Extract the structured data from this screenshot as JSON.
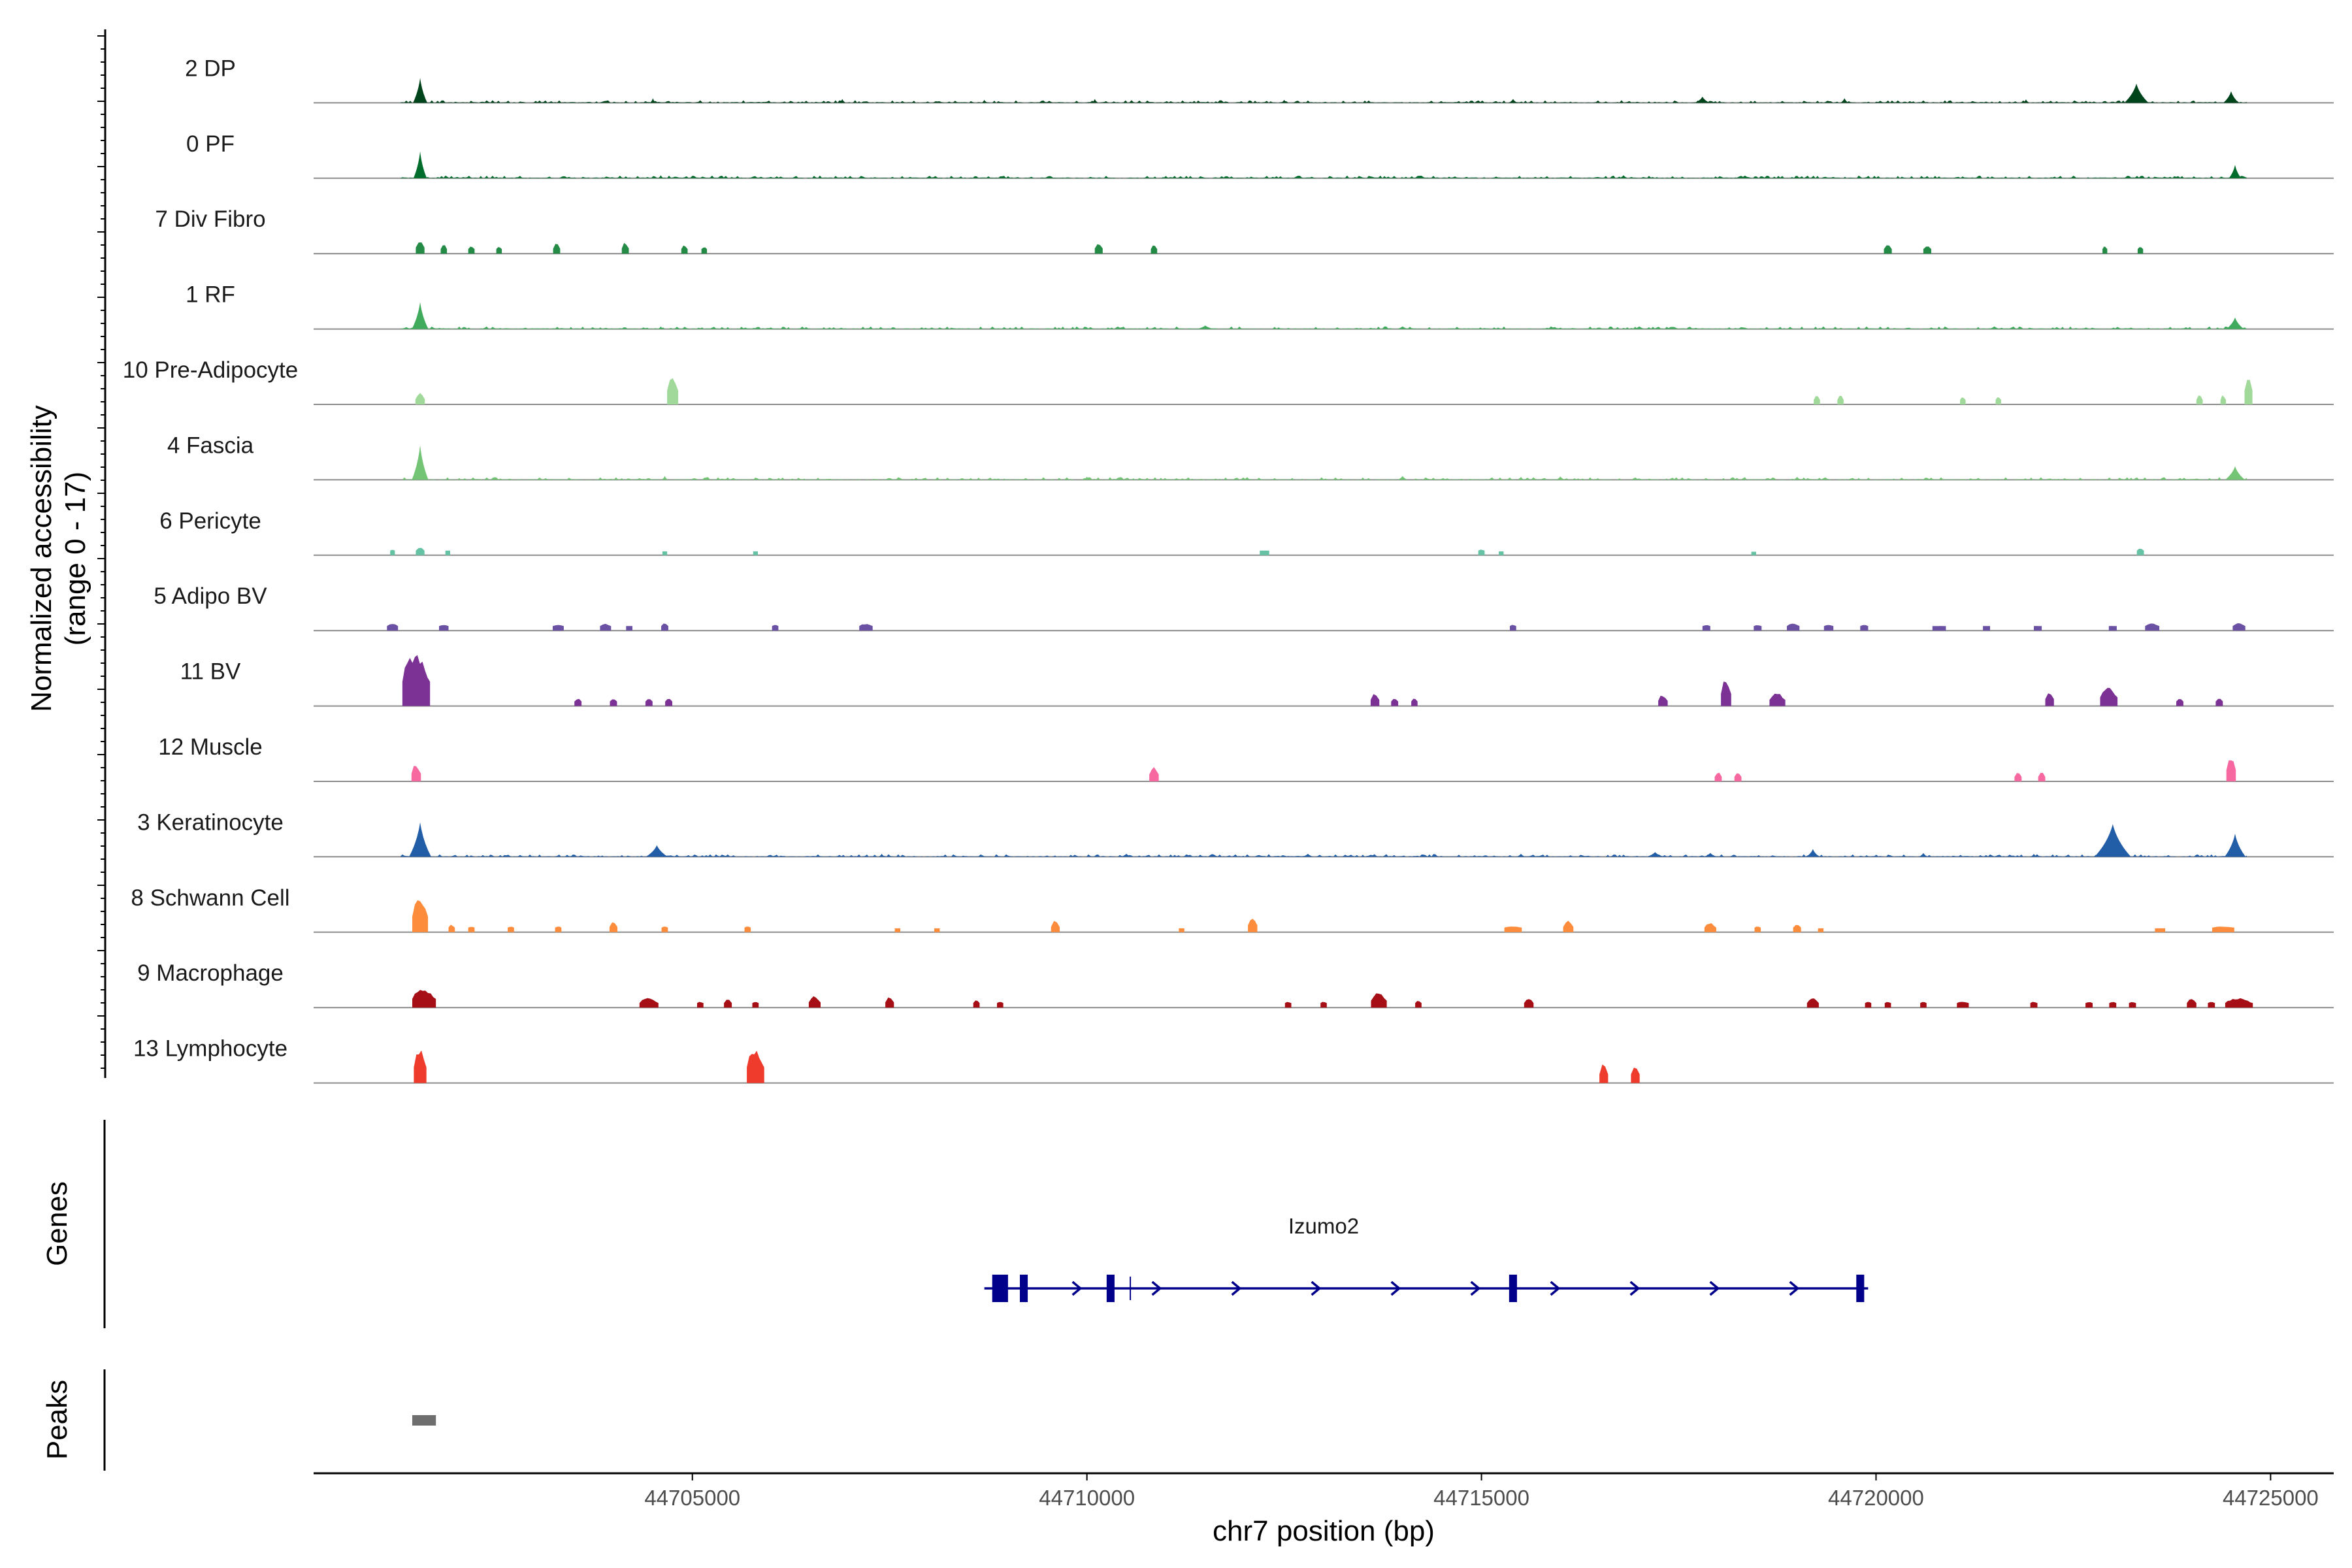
{
  "chart_data": {
    "type": "coverage-tracks",
    "ylabel_line1": "Normalized accessibility",
    "ylabel_line2": "(range 0 - 17)",
    "y_range": [
      0,
      17
    ],
    "xlabel": "chr7 position (bp)",
    "x_range": [
      44700200,
      44725800
    ],
    "x_ticks": [
      44705000,
      44710000,
      44715000,
      44720000,
      44725000
    ],
    "x_tick_labels": [
      "44705000",
      "44710000",
      "44715000",
      "44720000",
      "44725000"
    ],
    "genes_label": "Genes",
    "peaks_label": "Peaks",
    "tracks": [
      {
        "name": "2 DP",
        "color": "#00441b",
        "mode": "dense",
        "span": [
          44701300,
          44724700
        ],
        "peaks": [
          [
            44701550,
            6.5,
            130
          ],
          [
            44704500,
            1.2,
            50
          ],
          [
            44706900,
            1.0,
            60
          ],
          [
            44708700,
            0.8,
            40
          ],
          [
            44710100,
            1.0,
            60
          ],
          [
            44712500,
            0.8,
            60
          ],
          [
            44715400,
            1.0,
            80
          ],
          [
            44717800,
            1.6,
            130
          ],
          [
            44719600,
            1.2,
            70
          ],
          [
            44721900,
            0.9,
            60
          ],
          [
            44723300,
            5.0,
            220
          ],
          [
            44724500,
            3.0,
            140
          ]
        ]
      },
      {
        "name": "0 PF",
        "color": "#006d2c",
        "mode": "dense",
        "span": [
          44701300,
          44724700
        ],
        "peaks": [
          [
            44701550,
            7.0,
            120
          ],
          [
            44704600,
            0.8,
            50
          ],
          [
            44707000,
            0.6,
            60
          ],
          [
            44711000,
            0.6,
            60
          ],
          [
            44716800,
            0.8,
            80
          ],
          [
            44719000,
            0.7,
            60
          ],
          [
            44722500,
            0.7,
            60
          ],
          [
            44724550,
            3.5,
            110
          ]
        ]
      },
      {
        "name": "7 Div Fibro",
        "color": "#238b45",
        "mode": "sparse",
        "span": [],
        "peaks": [
          [
            44701550,
            3.5,
            110
          ],
          [
            44701850,
            2.5,
            80
          ],
          [
            44702200,
            2.0,
            80
          ],
          [
            44702550,
            1.8,
            70
          ],
          [
            44703280,
            2.8,
            90
          ],
          [
            44704150,
            3.0,
            90
          ],
          [
            44704900,
            2.2,
            80
          ],
          [
            44705150,
            1.8,
            70
          ],
          [
            44710150,
            3.0,
            100
          ],
          [
            44710850,
            2.5,
            80
          ],
          [
            44720150,
            2.5,
            100
          ],
          [
            44720650,
            2.0,
            100
          ],
          [
            44722900,
            2.0,
            60
          ],
          [
            44723350,
            1.8,
            70
          ]
        ]
      },
      {
        "name": "1 RF",
        "color": "#41ab5d",
        "mode": "dense",
        "span": [
          44701300,
          44724700
        ],
        "peaks": [
          [
            44701550,
            7.0,
            150
          ],
          [
            44704600,
            0.7,
            50
          ],
          [
            44711500,
            0.9,
            150
          ],
          [
            44714000,
            0.7,
            100
          ],
          [
            44717000,
            0.7,
            100
          ],
          [
            44721500,
            0.7,
            100
          ],
          [
            44724550,
            3.0,
            160
          ]
        ]
      },
      {
        "name": "10 Pre-Adipocyte",
        "color": "#a1d99b",
        "mode": "sparse",
        "span": [],
        "peaks": [
          [
            44701550,
            3.0,
            120
          ],
          [
            44704750,
            8.0,
            140
          ],
          [
            44719250,
            2.5,
            80
          ],
          [
            44719550,
            2.5,
            80
          ],
          [
            44721100,
            2.0,
            70
          ],
          [
            44721550,
            2.0,
            70
          ],
          [
            44724100,
            2.5,
            80
          ],
          [
            44724400,
            2.5,
            70
          ],
          [
            44724720,
            8.0,
            100
          ]
        ]
      },
      {
        "name": "4 Fascia",
        "color": "#74c476",
        "mode": "dense",
        "span": [
          44701300,
          44724700
        ],
        "peaks": [
          [
            44701550,
            9.0,
            150
          ],
          [
            44704650,
            1.0,
            60
          ],
          [
            44710000,
            0.8,
            80
          ],
          [
            44714000,
            1.0,
            90
          ],
          [
            44715500,
            0.8,
            60
          ],
          [
            44716000,
            0.9,
            80
          ],
          [
            44719000,
            0.8,
            70
          ],
          [
            44724550,
            3.5,
            180
          ]
        ]
      },
      {
        "name": "6 Pericyte",
        "color": "#66c2a4",
        "mode": "sparse",
        "span": [],
        "peaks": [
          [
            44701200,
            1.5,
            60
          ],
          [
            44701550,
            2.2,
            110
          ],
          [
            44701900,
            1.2,
            60
          ],
          [
            44704650,
            1.0,
            60
          ],
          [
            44705800,
            1.0,
            60
          ],
          [
            44712250,
            1.2,
            120
          ],
          [
            44715000,
            1.5,
            80
          ],
          [
            44715250,
            1.0,
            60
          ],
          [
            44718450,
            0.9,
            60
          ],
          [
            44723350,
            2.0,
            90
          ]
        ]
      },
      {
        "name": "5 Adipo BV",
        "color": "#6a51a3",
        "mode": "sparse",
        "span": [],
        "peaks": [
          [
            44701200,
            2.0,
            140
          ],
          [
            44701850,
            1.5,
            120
          ],
          [
            44703300,
            1.5,
            140
          ],
          [
            44703900,
            1.8,
            140
          ],
          [
            44704200,
            1.2,
            80
          ],
          [
            44704650,
            2.0,
            90
          ],
          [
            44706050,
            1.5,
            80
          ],
          [
            44707200,
            1.8,
            170
          ],
          [
            44715400,
            1.5,
            80
          ],
          [
            44717850,
            1.5,
            100
          ],
          [
            44718500,
            1.5,
            100
          ],
          [
            44718950,
            2.0,
            160
          ],
          [
            44719400,
            1.5,
            120
          ],
          [
            44719850,
            1.5,
            100
          ],
          [
            44720800,
            1.2,
            170
          ],
          [
            44721400,
            1.2,
            90
          ],
          [
            44722050,
            1.2,
            100
          ],
          [
            44723000,
            1.2,
            100
          ],
          [
            44723500,
            2.0,
            180
          ],
          [
            44724600,
            2.0,
            160
          ]
        ]
      },
      {
        "name": "11 BV",
        "color": "#7b3294",
        "mode": "sparse",
        "span": [],
        "peaks": [
          [
            44701500,
            14.0,
            350
          ],
          [
            44703550,
            2.0,
            90
          ],
          [
            44704000,
            2.0,
            90
          ],
          [
            44704450,
            2.0,
            90
          ],
          [
            44704700,
            2.0,
            90
          ],
          [
            44713650,
            3.5,
            110
          ],
          [
            44713900,
            2.0,
            90
          ],
          [
            44714150,
            2.0,
            80
          ],
          [
            44717300,
            3.0,
            120
          ],
          [
            44718100,
            7.0,
            130
          ],
          [
            44718750,
            3.5,
            200
          ],
          [
            44722200,
            4.0,
            110
          ],
          [
            44722950,
            5.0,
            220
          ],
          [
            44723850,
            2.0,
            90
          ],
          [
            44724350,
            2.0,
            90
          ]
        ]
      },
      {
        "name": "12 Muscle",
        "color": "#f768a1",
        "mode": "sparse",
        "span": [],
        "peaks": [
          [
            44701500,
            4.5,
            120
          ],
          [
            44710850,
            4.0,
            120
          ],
          [
            44718000,
            2.5,
            90
          ],
          [
            44718250,
            2.5,
            90
          ],
          [
            44721800,
            2.5,
            90
          ],
          [
            44722100,
            2.5,
            90
          ],
          [
            44724500,
            6.5,
            120
          ]
        ]
      },
      {
        "name": "3 Keratinocyte",
        "color": "#225ea8",
        "mode": "dense",
        "span": [
          44701300,
          44724700
        ],
        "peaks": [
          [
            44701550,
            9.0,
            200
          ],
          [
            44704550,
            3.0,
            200
          ],
          [
            44707400,
            0.8,
            60
          ],
          [
            44710500,
            0.8,
            100
          ],
          [
            44712800,
            0.8,
            100
          ],
          [
            44715500,
            0.8,
            80
          ],
          [
            44717200,
            1.2,
            150
          ],
          [
            44717900,
            1.0,
            120
          ],
          [
            44719200,
            2.0,
            120
          ],
          [
            44720600,
            1.0,
            80
          ],
          [
            44722000,
            0.8,
            60
          ],
          [
            44723000,
            8.5,
            330
          ],
          [
            44724550,
            6.0,
            190
          ]
        ]
      },
      {
        "name": "8 Schwann Cell",
        "color": "#fd8d3c",
        "mode": "sparse",
        "span": [],
        "peaks": [
          [
            44701550,
            9.0,
            200
          ],
          [
            44701950,
            2.0,
            80
          ],
          [
            44702200,
            1.5,
            80
          ],
          [
            44702700,
            1.5,
            80
          ],
          [
            44703300,
            1.5,
            80
          ],
          [
            44704000,
            3.0,
            100
          ],
          [
            44704650,
            1.5,
            80
          ],
          [
            44705700,
            1.5,
            80
          ],
          [
            44707600,
            1.0,
            70
          ],
          [
            44708100,
            1.0,
            70
          ],
          [
            44709600,
            3.0,
            110
          ],
          [
            44711200,
            1.0,
            70
          ],
          [
            44712100,
            4.0,
            120
          ],
          [
            44715400,
            1.5,
            220
          ],
          [
            44716100,
            3.0,
            130
          ],
          [
            44717900,
            2.5,
            150
          ],
          [
            44718500,
            1.5,
            80
          ],
          [
            44719000,
            2.0,
            100
          ],
          [
            44719300,
            1.0,
            70
          ],
          [
            44723600,
            1.0,
            130
          ],
          [
            44724400,
            1.5,
            280
          ]
        ]
      },
      {
        "name": "9 Macrophage",
        "color": "#a50f15",
        "mode": "sparse",
        "span": [],
        "peaks": [
          [
            44701600,
            5.0,
            300
          ],
          [
            44704450,
            2.5,
            240
          ],
          [
            44705100,
            1.5,
            80
          ],
          [
            44705450,
            2.5,
            100
          ],
          [
            44705800,
            1.5,
            80
          ],
          [
            44706550,
            3.0,
            150
          ],
          [
            44707500,
            3.0,
            110
          ],
          [
            44708600,
            2.0,
            80
          ],
          [
            44708900,
            1.5,
            80
          ],
          [
            44712550,
            1.5,
            80
          ],
          [
            44713000,
            1.5,
            80
          ],
          [
            44713700,
            4.0,
            200
          ],
          [
            44714200,
            2.0,
            80
          ],
          [
            44715600,
            2.5,
            120
          ],
          [
            44719200,
            2.5,
            150
          ],
          [
            44719900,
            1.5,
            80
          ],
          [
            44720150,
            1.5,
            80
          ],
          [
            44720600,
            1.5,
            80
          ],
          [
            44721100,
            1.5,
            150
          ],
          [
            44722000,
            1.5,
            90
          ],
          [
            44722700,
            1.5,
            90
          ],
          [
            44723000,
            1.5,
            90
          ],
          [
            44723250,
            1.5,
            90
          ],
          [
            44724000,
            2.5,
            120
          ],
          [
            44724250,
            1.5,
            90
          ],
          [
            44724600,
            2.5,
            350
          ]
        ]
      },
      {
        "name": "13 Lymphocyte",
        "color": "#ef3b2c",
        "mode": "sparse",
        "span": [],
        "peaks": [
          [
            44701550,
            9.0,
            160
          ],
          [
            44705800,
            9.0,
            220
          ],
          [
            44716550,
            5.0,
            110
          ],
          [
            44716950,
            5.0,
            110
          ]
        ]
      }
    ],
    "gene": {
      "name": "Izumo2",
      "strand": "+",
      "start": 44708700,
      "end": 44719900,
      "exons": [
        [
          44708800,
          44709000
        ],
        [
          44709150,
          44709250
        ],
        [
          44710250,
          44710350
        ],
        [
          44715350,
          44715450
        ],
        [
          44719750,
          44719850
        ]
      ],
      "color": "#00008b"
    },
    "peak_regions": [
      [
        44701450,
        44701750
      ]
    ]
  }
}
